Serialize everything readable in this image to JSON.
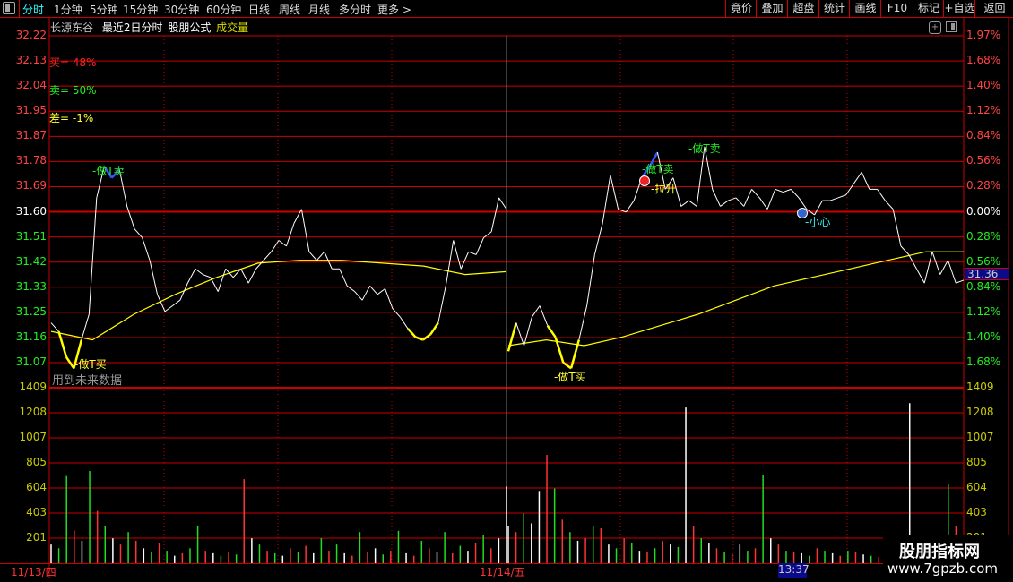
{
  "toolbar": {
    "tabs": [
      "分时",
      "1分钟",
      "5分钟",
      "15分钟",
      "30分钟",
      "60分钟",
      "日线",
      "周线",
      "月线",
      "多分时",
      "更多 >"
    ],
    "active_tab": "分时",
    "right_buttons": [
      "竟价",
      "叠加",
      "超盘",
      "统计",
      "画线",
      "F10",
      "标记",
      "+自选",
      "返回"
    ]
  },
  "header": {
    "stock": "长源东谷",
    "mode": "最近2日分时",
    "formula": "股朋公式",
    "indicator": "成交量"
  },
  "stats": {
    "buy": "买= 48%",
    "sell": "卖= 50%",
    "diff": "差= -1%"
  },
  "note": "用到未来数据",
  "colors": {
    "up": "#ff3333",
    "down": "#22dd22",
    "flat": "#ffffff",
    "avg_line": "#ffff00",
    "grid": "#cc0000",
    "highlight_bg": "#0a0a8a"
  },
  "current_price": "31.36",
  "cursor_time": "13:37",
  "dates": [
    "11/13/四",
    "11/14/五"
  ],
  "watermark": {
    "title": "股朋指标网",
    "url": "www.7gpzb.com"
  },
  "annotations": [
    {
      "text": "做T卖",
      "type": "sell"
    },
    {
      "text": "做T买",
      "type": "buy"
    },
    {
      "text": "做T卖",
      "type": "sell"
    },
    {
      "text": "做T卖",
      "type": "sell"
    },
    {
      "text": "做T买",
      "type": "buy"
    },
    {
      "text": "拉升",
      "type": "rise"
    },
    {
      "text": "小心",
      "type": "caution"
    }
  ],
  "chart_data": {
    "type": "line",
    "price_axis": {
      "labels": [
        "32.22",
        "32.13",
        "32.04",
        "31.95",
        "31.87",
        "31.78",
        "31.69",
        "31.60",
        "31.51",
        "31.42",
        "31.33",
        "31.25",
        "31.16",
        "31.07"
      ],
      "pct_labels": [
        "1.97%",
        "1.68%",
        "1.40%",
        "1.12%",
        "0.84%",
        "0.56%",
        "0.28%",
        "0.00%",
        "0.28%",
        "0.56%",
        "0.84%",
        "1.12%",
        "1.40%",
        "1.68%"
      ],
      "ylim": [
        31.07,
        32.22
      ],
      "prev_close": 31.6
    },
    "volume_axis": {
      "labels": [
        "1409",
        "1208",
        "1007",
        "805",
        "604",
        "403",
        "201"
      ],
      "ylim": [
        0,
        1409
      ]
    },
    "series": [
      {
        "day": "11/13/四",
        "price": [
          31.21,
          31.18,
          31.09,
          31.05,
          31.15,
          31.24,
          31.65,
          31.76,
          31.72,
          31.75,
          31.62,
          31.54,
          31.51,
          31.43,
          31.31,
          31.25,
          31.27,
          31.29,
          31.35,
          31.4,
          31.38,
          31.37,
          31.32,
          31.4,
          31.37,
          31.4,
          31.35,
          31.4,
          31.43,
          31.46,
          31.5,
          31.48,
          31.56,
          31.61,
          31.46,
          31.43,
          31.46,
          31.4,
          31.4,
          31.34,
          31.32,
          31.29,
          31.34,
          31.31,
          31.33,
          31.26,
          31.23,
          31.19,
          31.16,
          31.15,
          31.17,
          31.21,
          31.34,
          31.5,
          31.4,
          31.46,
          31.45,
          31.51,
          31.53,
          31.65,
          31.61
        ],
        "avg": [
          31.18,
          31.15,
          31.24,
          31.31,
          31.37,
          31.42,
          31.43,
          31.43,
          31.42,
          31.41,
          31.38,
          31.39
        ],
        "volume": [
          150,
          120,
          700,
          260,
          180,
          740,
          420,
          300,
          200,
          150,
          250,
          180,
          120,
          90,
          160,
          100,
          60,
          80,
          120,
          300,
          100,
          80,
          60,
          90,
          70,
          675,
          200,
          150,
          100,
          80,
          60,
          120,
          90,
          140,
          80,
          200,
          100,
          150,
          80,
          60,
          250,
          90,
          120,
          70,
          100,
          260,
          80,
          60,
          180,
          120,
          90,
          250,
          80,
          140,
          100,
          160,
          230,
          120,
          200,
          617
        ],
        "volume_colors": [
          "w",
          "g",
          "g",
          "r",
          "w",
          "g",
          "r",
          "g",
          "w",
          "r",
          "g",
          "r",
          "w",
          "g",
          "r",
          "g",
          "w",
          "r",
          "g",
          "g",
          "r",
          "w",
          "g",
          "r",
          "g",
          "r",
          "w",
          "g",
          "r",
          "g",
          "w",
          "r",
          "g",
          "r",
          "w",
          "g",
          "r",
          "g",
          "w",
          "r",
          "g",
          "r",
          "w",
          "g",
          "r",
          "g",
          "w",
          "r",
          "g",
          "r",
          "w",
          "g",
          "r",
          "g",
          "w",
          "r",
          "g",
          "r",
          "w",
          "w"
        ]
      },
      {
        "day": "11/14/五",
        "price": [
          31.11,
          31.21,
          31.13,
          31.23,
          31.27,
          31.2,
          31.16,
          31.07,
          31.05,
          31.15,
          31.27,
          31.45,
          31.56,
          31.73,
          31.61,
          31.6,
          31.64,
          31.72,
          31.76,
          31.81,
          31.68,
          31.72,
          31.62,
          31.64,
          31.62,
          31.83,
          31.68,
          31.62,
          31.64,
          31.65,
          31.62,
          31.68,
          31.65,
          31.61,
          31.68,
          31.67,
          31.68,
          31.65,
          31.61,
          31.59,
          31.64,
          31.64,
          31.65,
          31.66,
          31.7,
          31.74,
          31.68,
          31.68,
          31.64,
          31.61,
          31.48,
          31.45,
          31.4,
          31.35,
          31.46,
          31.38,
          31.43,
          31.35,
          31.36
        ],
        "avg": [
          31.13,
          31.15,
          31.13,
          31.16,
          31.2,
          31.24,
          31.29,
          31.34,
          31.37,
          31.4,
          31.43,
          31.46,
          31.46
        ],
        "volume": [
          300,
          250,
          400,
          320,
          580,
          870,
          600,
          350,
          250,
          180,
          200,
          300,
          280,
          150,
          120,
          200,
          160,
          100,
          90,
          120,
          180,
          150,
          130,
          1250,
          300,
          200,
          160,
          120,
          90,
          80,
          150,
          100,
          120,
          710,
          200,
          150,
          100,
          90,
          80,
          60,
          120,
          100,
          80,
          60,
          100,
          90,
          70,
          60,
          50,
          40,
          60,
          30,
          1285,
          20,
          30,
          80,
          200,
          640,
          300,
          150
        ],
        "volume_colors": [
          "w",
          "r",
          "g",
          "w",
          "w",
          "r",
          "g",
          "r",
          "g",
          "w",
          "r",
          "g",
          "r",
          "w",
          "g",
          "r",
          "g",
          "w",
          "r",
          "g",
          "r",
          "w",
          "g",
          "w",
          "r",
          "g",
          "w",
          "r",
          "g",
          "r",
          "w",
          "g",
          "r",
          "g",
          "w",
          "r",
          "g",
          "r",
          "w",
          "g",
          "r",
          "g",
          "w",
          "r",
          "g",
          "r",
          "w",
          "g",
          "r",
          "g",
          "w",
          "r",
          "w",
          "g",
          "r",
          "w",
          "r",
          "g",
          "r",
          "g"
        ]
      }
    ]
  }
}
